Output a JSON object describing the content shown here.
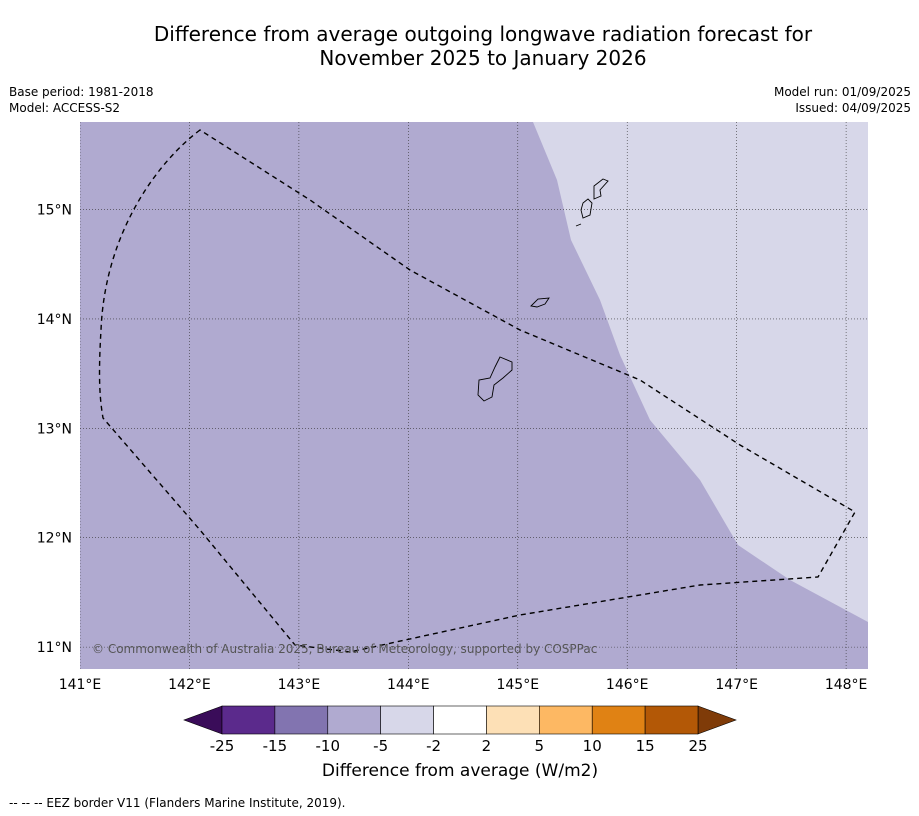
{
  "title": {
    "line1": "Difference from average outgoing longwave radiation forecast for",
    "line2": "November 2025 to January 2026"
  },
  "meta": {
    "base_period": "Base period: 1981-2018",
    "model": "Model: ACCESS-S2",
    "model_run": "Model run: 01/09/2025",
    "issued": "Issued: 04/09/2025"
  },
  "map": {
    "extent": {
      "lon": [
        141,
        148.2
      ],
      "lat": [
        10.8,
        15.8
      ]
    },
    "lon_ticks": [
      {
        "value": 141,
        "label": "141°E"
      },
      {
        "value": 142,
        "label": "142°E"
      },
      {
        "value": 143,
        "label": "143°E"
      },
      {
        "value": 144,
        "label": "144°E"
      },
      {
        "value": 145,
        "label": "145°E"
      },
      {
        "value": 146,
        "label": "146°E"
      },
      {
        "value": 147,
        "label": "147°E"
      },
      {
        "value": 148,
        "label": "148°E"
      }
    ],
    "lat_ticks": [
      {
        "value": 15,
        "label": "15°N"
      },
      {
        "value": 14,
        "label": "14°N"
      },
      {
        "value": 13,
        "label": "13°N"
      },
      {
        "value": 12,
        "label": "12°N"
      },
      {
        "value": 11,
        "label": "11°N"
      }
    ],
    "copyright": "© Commonwealth of Australia 2025, Bureau of Meteorology, supported by COSPPac",
    "background_color": "#b0aad0",
    "light_zone_color": "#d7d7e9"
  },
  "colorbar": {
    "title": "Difference from average (W/m2)",
    "labels": [
      "-25",
      "-15",
      "-10",
      "-5",
      "-2",
      "2",
      "5",
      "10",
      "15",
      "25"
    ],
    "colors": [
      "#5b2a8c",
      "#8274b0",
      "#b0aad0",
      "#d7d7e9",
      "#ffffff",
      "#fde0b6",
      "#fdb863",
      "#e08214",
      "#b35806"
    ],
    "low_extend_color": "#3a0c59",
    "high_extend_color": "#7f3b08"
  },
  "footnote": "--  --  -- EEZ border V11 (Flanders Marine Institute, 2019)."
}
